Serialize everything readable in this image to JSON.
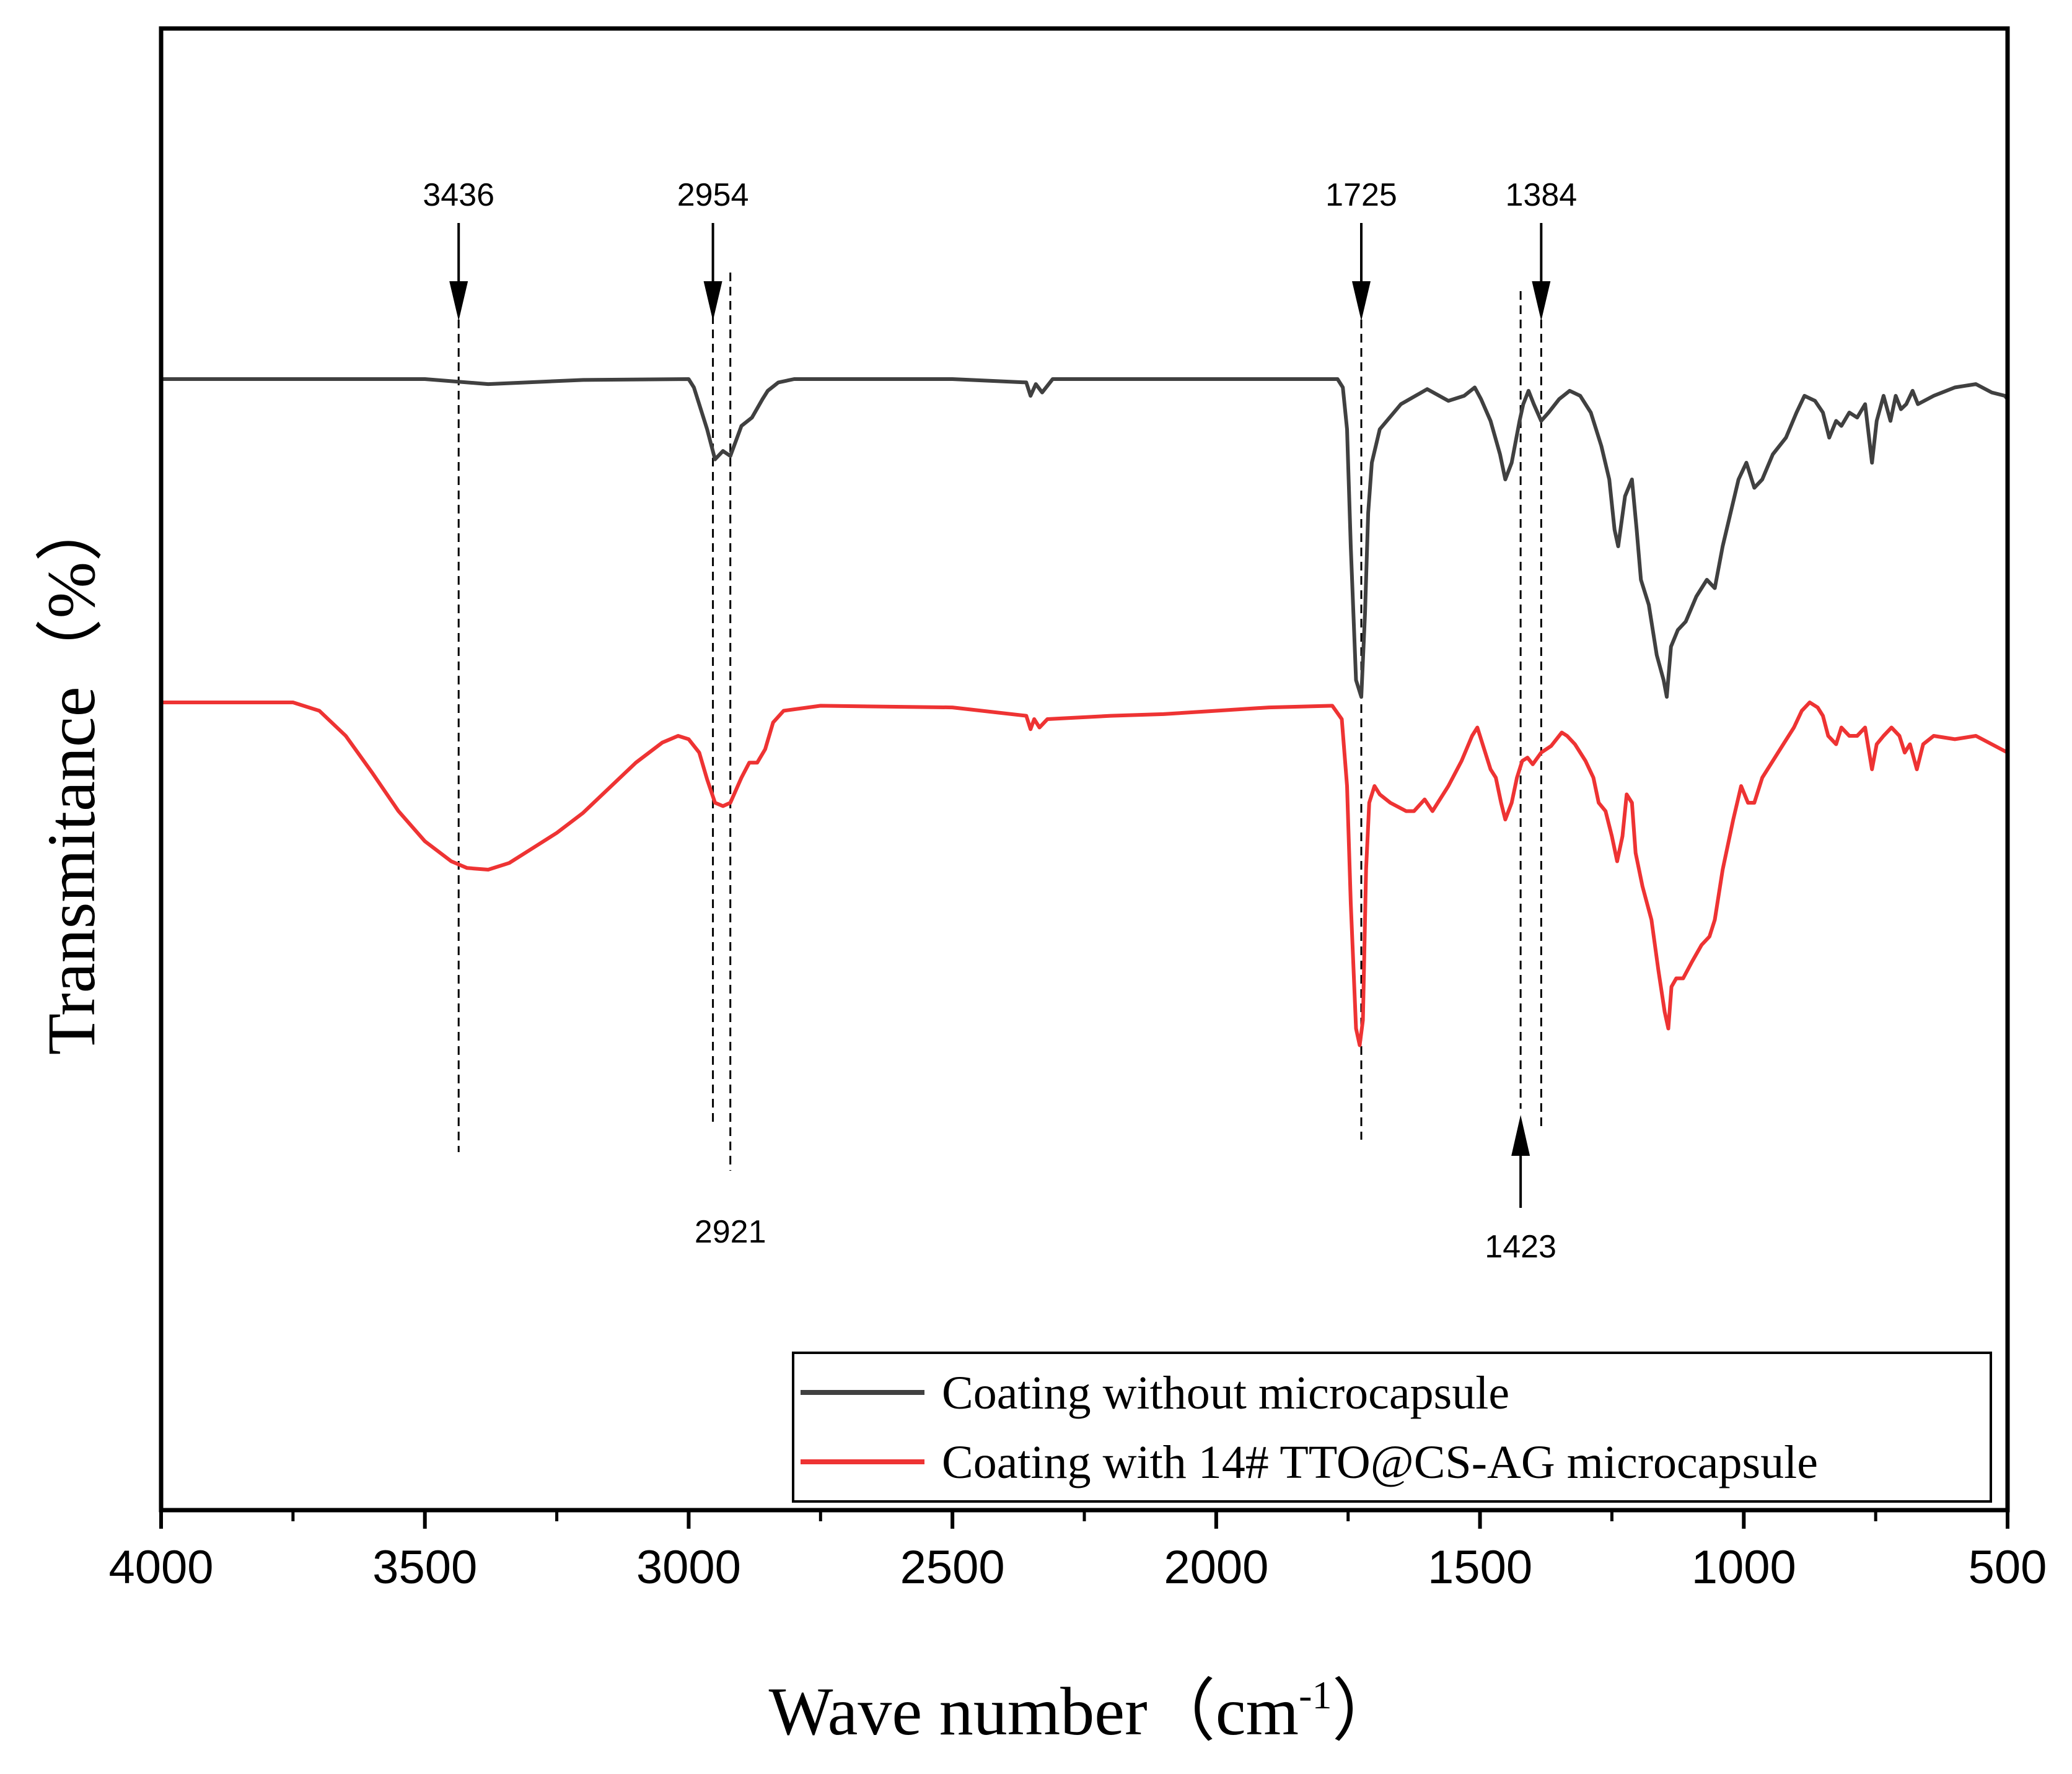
{
  "chart_data": {
    "type": "line",
    "title": "",
    "xlabel": "Wave number（cm",
    "xlabel_superscript": "-1",
    "xlabel_close": "）",
    "ylabel": "Transmitance（%）",
    "xlim": [
      4000,
      500
    ],
    "x_reversed": true,
    "y_ticks_shown": false,
    "x_ticks": [
      4000,
      3500,
      3000,
      2500,
      2000,
      1500,
      1000,
      500
    ],
    "x_tick_labels": [
      "4000",
      "3500",
      "3000",
      "2500",
      "2000",
      "1500",
      "1000",
      "500"
    ],
    "legend_position": "bottom-right",
    "series": [
      {
        "name": "Coating without microcapsule",
        "color": "#404040",
        "points": [
          [
            4000,
            0.0
          ],
          [
            3750,
            0.0
          ],
          [
            3500,
            0.0
          ],
          [
            3380,
            0.3
          ],
          [
            3200,
            0.05
          ],
          [
            3000,
            0.0
          ],
          [
            2990,
            0.5
          ],
          [
            2965,
            3.0
          ],
          [
            2950,
            4.8
          ],
          [
            2935,
            4.3
          ],
          [
            2921,
            4.6
          ],
          [
            2900,
            2.8
          ],
          [
            2880,
            2.3
          ],
          [
            2860,
            1.2
          ],
          [
            2850,
            0.7
          ],
          [
            2830,
            0.2
          ],
          [
            2800,
            0.0
          ],
          [
            2500,
            0.0
          ],
          [
            2360,
            0.2
          ],
          [
            2352,
            1.0
          ],
          [
            2342,
            0.3
          ],
          [
            2330,
            0.8
          ],
          [
            2310,
            0.0
          ],
          [
            2000,
            0.0
          ],
          [
            1770,
            0.0
          ],
          [
            1760,
            0.5
          ],
          [
            1752,
            3.0
          ],
          [
            1745,
            10.0
          ],
          [
            1735,
            18.0
          ],
          [
            1725,
            19.0
          ],
          [
            1718,
            14.0
          ],
          [
            1712,
            8.0
          ],
          [
            1705,
            5.0
          ],
          [
            1690,
            3.0
          ],
          [
            1650,
            1.5
          ],
          [
            1600,
            0.6
          ],
          [
            1560,
            1.3
          ],
          [
            1530,
            1.0
          ],
          [
            1510,
            0.5
          ],
          [
            1498,
            1.2
          ],
          [
            1480,
            2.5
          ],
          [
            1462,
            4.5
          ],
          [
            1452,
            6.0
          ],
          [
            1440,
            5.0
          ],
          [
            1425,
            2.5
          ],
          [
            1418,
            1.5
          ],
          [
            1408,
            0.7
          ],
          [
            1398,
            1.5
          ],
          [
            1384,
            2.5
          ],
          [
            1370,
            2.0
          ],
          [
            1350,
            1.2
          ],
          [
            1330,
            0.7
          ],
          [
            1310,
            1.0
          ],
          [
            1290,
            2.0
          ],
          [
            1270,
            4.0
          ],
          [
            1255,
            6.0
          ],
          [
            1245,
            9.0
          ],
          [
            1238,
            10.0
          ],
          [
            1225,
            7.0
          ],
          [
            1212,
            6.0
          ],
          [
            1203,
            9.0
          ],
          [
            1195,
            12.0
          ],
          [
            1180,
            13.5
          ],
          [
            1165,
            16.5
          ],
          [
            1152,
            18.0
          ],
          [
            1146,
            19.0
          ],
          [
            1138,
            16.0
          ],
          [
            1125,
            15.0
          ],
          [
            1110,
            14.5
          ],
          [
            1090,
            13.0
          ],
          [
            1070,
            12.0
          ],
          [
            1055,
            12.5
          ],
          [
            1040,
            10.0
          ],
          [
            1010,
            6.0
          ],
          [
            995,
            5.0
          ],
          [
            980,
            6.5
          ],
          [
            965,
            6.0
          ],
          [
            945,
            4.5
          ],
          [
            920,
            3.5
          ],
          [
            900,
            2.0
          ],
          [
            885,
            1.0
          ],
          [
            865,
            1.3
          ],
          [
            850,
            2.0
          ],
          [
            838,
            3.5
          ],
          [
            825,
            2.5
          ],
          [
            815,
            2.8
          ],
          [
            800,
            2.0
          ],
          [
            785,
            2.3
          ],
          [
            770,
            1.5
          ],
          [
            757,
            5.0
          ],
          [
            748,
            2.5
          ],
          [
            735,
            1.0
          ],
          [
            722,
            2.5
          ],
          [
            712,
            1.0
          ],
          [
            702,
            1.8
          ],
          [
            692,
            1.5
          ],
          [
            680,
            0.7
          ],
          [
            670,
            1.5
          ],
          [
            640,
            1.0
          ],
          [
            600,
            0.5
          ],
          [
            560,
            0.3
          ],
          [
            530,
            0.8
          ],
          [
            505,
            1.0
          ],
          [
            500,
            1.2
          ]
        ]
      },
      {
        "name": "Coating with 14# TTO@CS-AG microcapsule",
        "color": "#EE3333",
        "points": [
          [
            4000,
            0.0
          ],
          [
            3850,
            0.0
          ],
          [
            3750,
            0.0
          ],
          [
            3700,
            0.5
          ],
          [
            3650,
            2.0
          ],
          [
            3600,
            4.2
          ],
          [
            3550,
            6.5
          ],
          [
            3500,
            8.3
          ],
          [
            3450,
            9.5
          ],
          [
            3420,
            9.9
          ],
          [
            3380,
            10.0
          ],
          [
            3340,
            9.6
          ],
          [
            3300,
            8.8
          ],
          [
            3250,
            7.8
          ],
          [
            3200,
            6.6
          ],
          [
            3150,
            5.1
          ],
          [
            3100,
            3.6
          ],
          [
            3050,
            2.4
          ],
          [
            3020,
            2.0
          ],
          [
            3000,
            2.2
          ],
          [
            2980,
            3.0
          ],
          [
            2965,
            4.6
          ],
          [
            2950,
            6.0
          ],
          [
            2935,
            6.2
          ],
          [
            2921,
            6.0
          ],
          [
            2900,
            4.5
          ],
          [
            2885,
            3.6
          ],
          [
            2870,
            3.6
          ],
          [
            2855,
            2.8
          ],
          [
            2840,
            1.2
          ],
          [
            2820,
            0.5
          ],
          [
            2750,
            0.2
          ],
          [
            2500,
            0.3
          ],
          [
            2360,
            0.8
          ],
          [
            2352,
            1.6
          ],
          [
            2345,
            1.0
          ],
          [
            2335,
            1.5
          ],
          [
            2320,
            1.0
          ],
          [
            2200,
            0.8
          ],
          [
            2100,
            0.7
          ],
          [
            2000,
            0.5
          ],
          [
            1900,
            0.3
          ],
          [
            1780,
            0.2
          ],
          [
            1762,
            1.0
          ],
          [
            1752,
            5.0
          ],
          [
            1745,
            12.0
          ],
          [
            1735,
            19.5
          ],
          [
            1728,
            20.5
          ],
          [
            1722,
            19.0
          ],
          [
            1716,
            10.0
          ],
          [
            1710,
            6.0
          ],
          [
            1700,
            5.0
          ],
          [
            1690,
            5.5
          ],
          [
            1670,
            6.0
          ],
          [
            1640,
            6.5
          ],
          [
            1625,
            6.5
          ],
          [
            1605,
            5.8
          ],
          [
            1590,
            6.5
          ],
          [
            1560,
            5.0
          ],
          [
            1535,
            3.5
          ],
          [
            1515,
            2.0
          ],
          [
            1505,
            1.5
          ],
          [
            1495,
            2.5
          ],
          [
            1480,
            4.0
          ],
          [
            1470,
            4.5
          ],
          [
            1460,
            6.0
          ],
          [
            1452,
            7.0
          ],
          [
            1440,
            6.0
          ],
          [
            1430,
            4.5
          ],
          [
            1420,
            3.5
          ],
          [
            1410,
            3.3
          ],
          [
            1400,
            3.7
          ],
          [
            1384,
            3.0
          ],
          [
            1365,
            2.6
          ],
          [
            1345,
            1.8
          ],
          [
            1335,
            2.0
          ],
          [
            1320,
            2.5
          ],
          [
            1300,
            3.5
          ],
          [
            1285,
            4.5
          ],
          [
            1275,
            6.0
          ],
          [
            1262,
            6.5
          ],
          [
            1250,
            8.0
          ],
          [
            1240,
            9.5
          ],
          [
            1230,
            8.0
          ],
          [
            1222,
            5.5
          ],
          [
            1212,
            6.0
          ],
          [
            1205,
            9.0
          ],
          [
            1192,
            11.0
          ],
          [
            1175,
            13.0
          ],
          [
            1162,
            16.0
          ],
          [
            1150,
            18.5
          ],
          [
            1143,
            19.5
          ],
          [
            1137,
            17.0
          ],
          [
            1128,
            16.5
          ],
          [
            1115,
            16.5
          ],
          [
            1098,
            15.5
          ],
          [
            1080,
            14.5
          ],
          [
            1065,
            14.0
          ],
          [
            1055,
            13.0
          ],
          [
            1040,
            10.0
          ],
          [
            1020,
            7.0
          ],
          [
            1005,
            5.0
          ],
          [
            992,
            6.0
          ],
          [
            980,
            6.0
          ],
          [
            965,
            4.5
          ],
          [
            945,
            3.5
          ],
          [
            925,
            2.5
          ],
          [
            905,
            1.5
          ],
          [
            890,
            0.5
          ],
          [
            875,
            0.0
          ],
          [
            860,
            0.3
          ],
          [
            850,
            0.8
          ],
          [
            840,
            2.0
          ],
          [
            825,
            2.5
          ],
          [
            815,
            1.5
          ],
          [
            800,
            2.0
          ],
          [
            785,
            2.0
          ],
          [
            770,
            1.5
          ],
          [
            757,
            4.0
          ],
          [
            748,
            2.5
          ],
          [
            735,
            2.0
          ],
          [
            720,
            1.5
          ],
          [
            705,
            2.0
          ],
          [
            695,
            3.0
          ],
          [
            685,
            2.5
          ],
          [
            672,
            4.0
          ],
          [
            660,
            2.5
          ],
          [
            640,
            2.0
          ],
          [
            600,
            2.2
          ],
          [
            560,
            2.0
          ],
          [
            530,
            2.5
          ],
          [
            500,
            3.0
          ]
        ]
      }
    ],
    "annotations": [
      {
        "label": "3436",
        "x": 3436,
        "arrow": "down"
      },
      {
        "label": "2954",
        "x": 2954,
        "arrow": "down"
      },
      {
        "label": "2921",
        "x": 2921,
        "arrow": "none"
      },
      {
        "label": "1725",
        "x": 1725,
        "arrow": "down"
      },
      {
        "label": "1384",
        "x": 1384,
        "arrow": "down"
      },
      {
        "label": "1423",
        "x": 1423,
        "arrow": "up"
      }
    ]
  }
}
